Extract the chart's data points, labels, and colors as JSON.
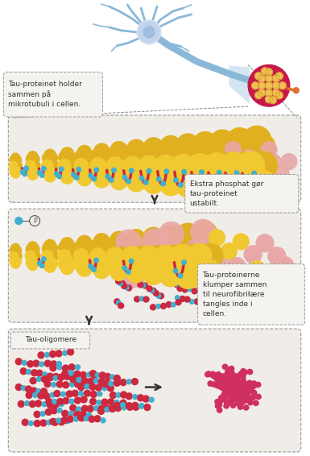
{
  "background_color": "#ffffff",
  "neuron_color": "#8ab8d8",
  "neuron_soma_color": "#b8d0e8",
  "axon_outer_color": "#c8184a",
  "microtubule_yellow": "#f0c830",
  "microtubule_pink": "#e8a8a8",
  "tau_red": "#cc2840",
  "tau_blue": "#40b0d0",
  "panel_bg": "#f0ede8",
  "panel_border": "#999999",
  "arrow_color": "#333333",
  "text_color": "#333333",
  "tangle_pink": "#d03060",
  "label1": "Tau-proteinet holder\nsammen på\nmikrotubuli i cellen.",
  "label2": "Ekstra phosphat gør\ntau-proteinet\nustabilt.",
  "label3": "Tau-proteinerne\nklumper sammen\ntil neurofibriłære\ntangles inde i\ncellen.",
  "label4": "Tau-oligomere"
}
